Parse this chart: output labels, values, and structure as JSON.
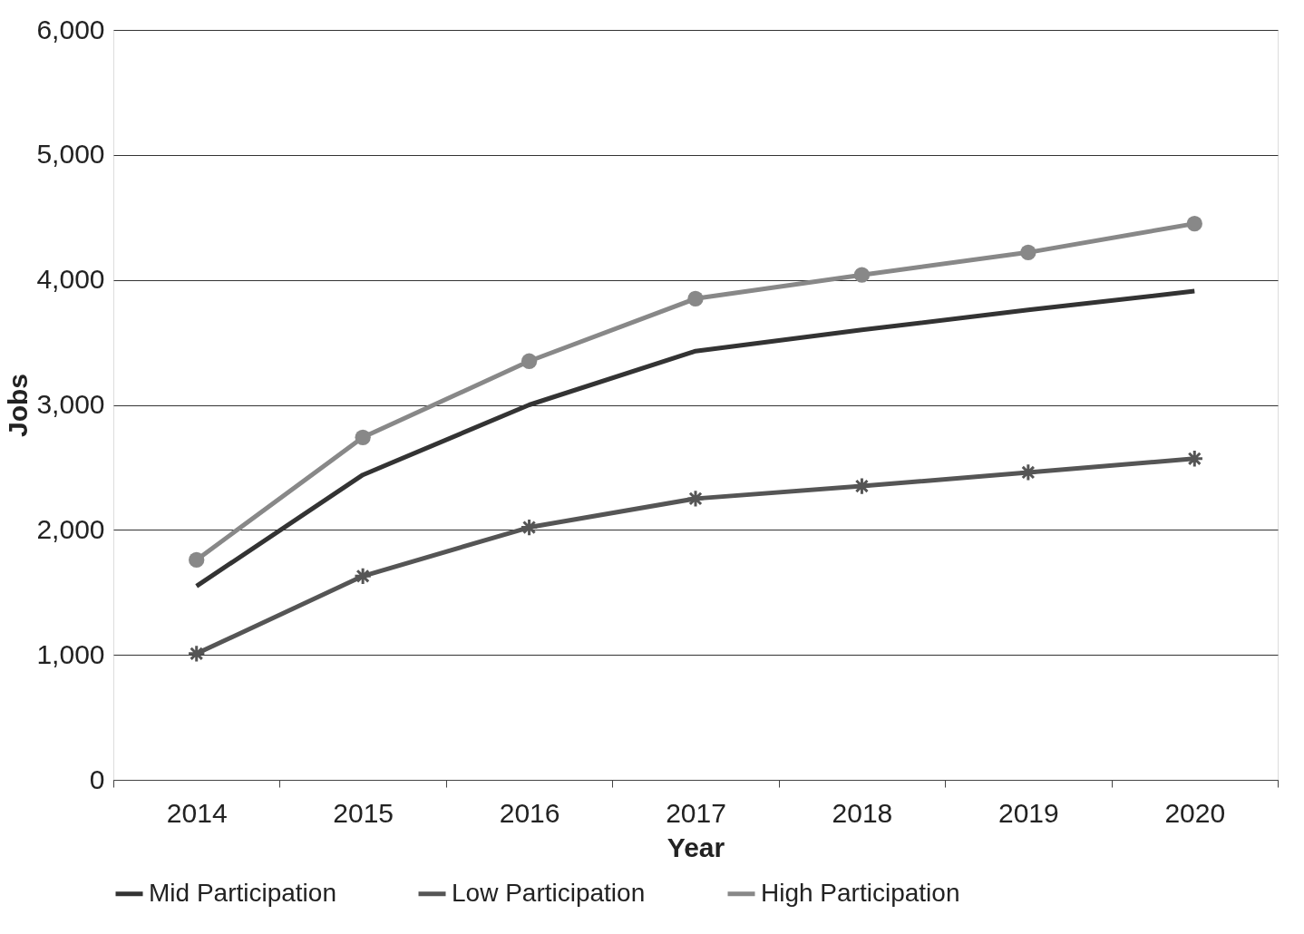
{
  "chart_data": {
    "type": "line",
    "xlabel": "Year",
    "ylabel": "Jobs",
    "categories": [
      "2014",
      "2015",
      "2016",
      "2017",
      "2018",
      "2019",
      "2020"
    ],
    "series": [
      {
        "name": "Mid Participation",
        "color": "#333333",
        "marker": "none",
        "values": [
          1550,
          2440,
          3000,
          3430,
          3600,
          3760,
          3910
        ]
      },
      {
        "name": "Low Participation",
        "color": "#555555",
        "marker": "cross",
        "values": [
          1010,
          1630,
          2020,
          2250,
          2350,
          2460,
          2570
        ]
      },
      {
        "name": "High Participation",
        "color": "#888888",
        "marker": "circle",
        "values": [
          1760,
          2740,
          3350,
          3850,
          4040,
          4220,
          4450
        ]
      }
    ],
    "ylim": [
      0,
      6000
    ],
    "yticks": [
      0,
      {
        "value": 1000,
        "label": "1,000"
      },
      {
        "value": 2000,
        "label": "2,000"
      },
      {
        "value": 3000,
        "label": "3,000"
      },
      {
        "value": 4000,
        "label": "4,000"
      },
      {
        "value": 5000,
        "label": "5,000"
      },
      {
        "value": 6000,
        "label": "6,000"
      }
    ],
    "grid": "y",
    "legend": "bottom"
  }
}
